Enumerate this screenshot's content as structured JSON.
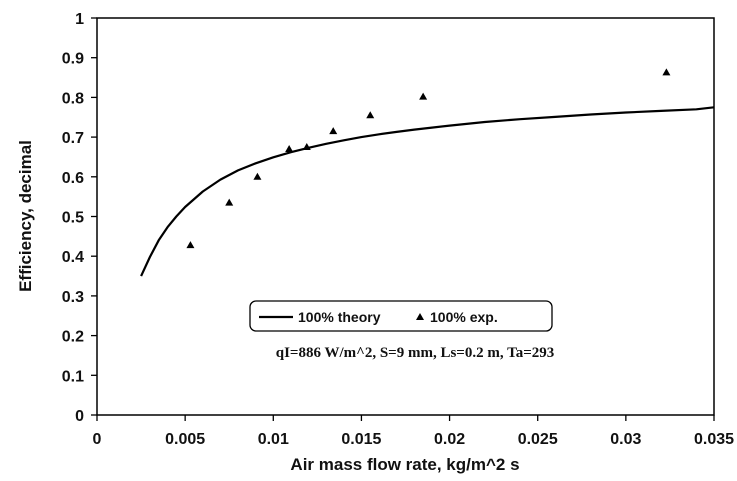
{
  "chart_data": {
    "type": "scatter",
    "xlabel": "Air mass flow rate, kg/m^2 s",
    "ylabel": "Efficiency, decimal",
    "xlim": [
      0,
      0.035
    ],
    "ylim": [
      0,
      1
    ],
    "x_ticks": [
      "0",
      "0.005",
      "0.01",
      "0.015",
      "0.02",
      "0.025",
      "0.03",
      "0.035"
    ],
    "y_ticks": [
      "0",
      "0.1",
      "0.2",
      "0.3",
      "0.4",
      "0.5",
      "0.6",
      "0.7",
      "0.8",
      "0.9",
      "1"
    ],
    "grid": false,
    "legend_position": "bottom-center",
    "series": [
      {
        "name": "100% theory",
        "style": "line",
        "color": "#000000",
        "x": [
          0.0025,
          0.003,
          0.0035,
          0.004,
          0.0045,
          0.005,
          0.006,
          0.007,
          0.008,
          0.009,
          0.01,
          0.011,
          0.012,
          0.013,
          0.014,
          0.015,
          0.016,
          0.017,
          0.018,
          0.019,
          0.02,
          0.022,
          0.024,
          0.026,
          0.028,
          0.03,
          0.032,
          0.034,
          0.035
        ],
        "y": [
          0.35,
          0.398,
          0.44,
          0.473,
          0.5,
          0.524,
          0.563,
          0.593,
          0.616,
          0.634,
          0.649,
          0.662,
          0.673,
          0.683,
          0.692,
          0.7,
          0.707,
          0.713,
          0.719,
          0.724,
          0.729,
          0.738,
          0.745,
          0.751,
          0.757,
          0.762,
          0.766,
          0.77,
          0.775
        ]
      },
      {
        "name": "100% exp.",
        "style": "markers",
        "marker": "triangle",
        "color": "#000000",
        "x": [
          0.0053,
          0.0075,
          0.0091,
          0.0109,
          0.0119,
          0.0134,
          0.0155,
          0.0185,
          0.0323
        ],
        "y": [
          0.428,
          0.535,
          0.6,
          0.67,
          0.675,
          0.715,
          0.755,
          0.802,
          0.863
        ]
      }
    ],
    "annotation": "qI=886 W/m^2, S=9 mm, Ls=0.2 m, Ta=293"
  }
}
